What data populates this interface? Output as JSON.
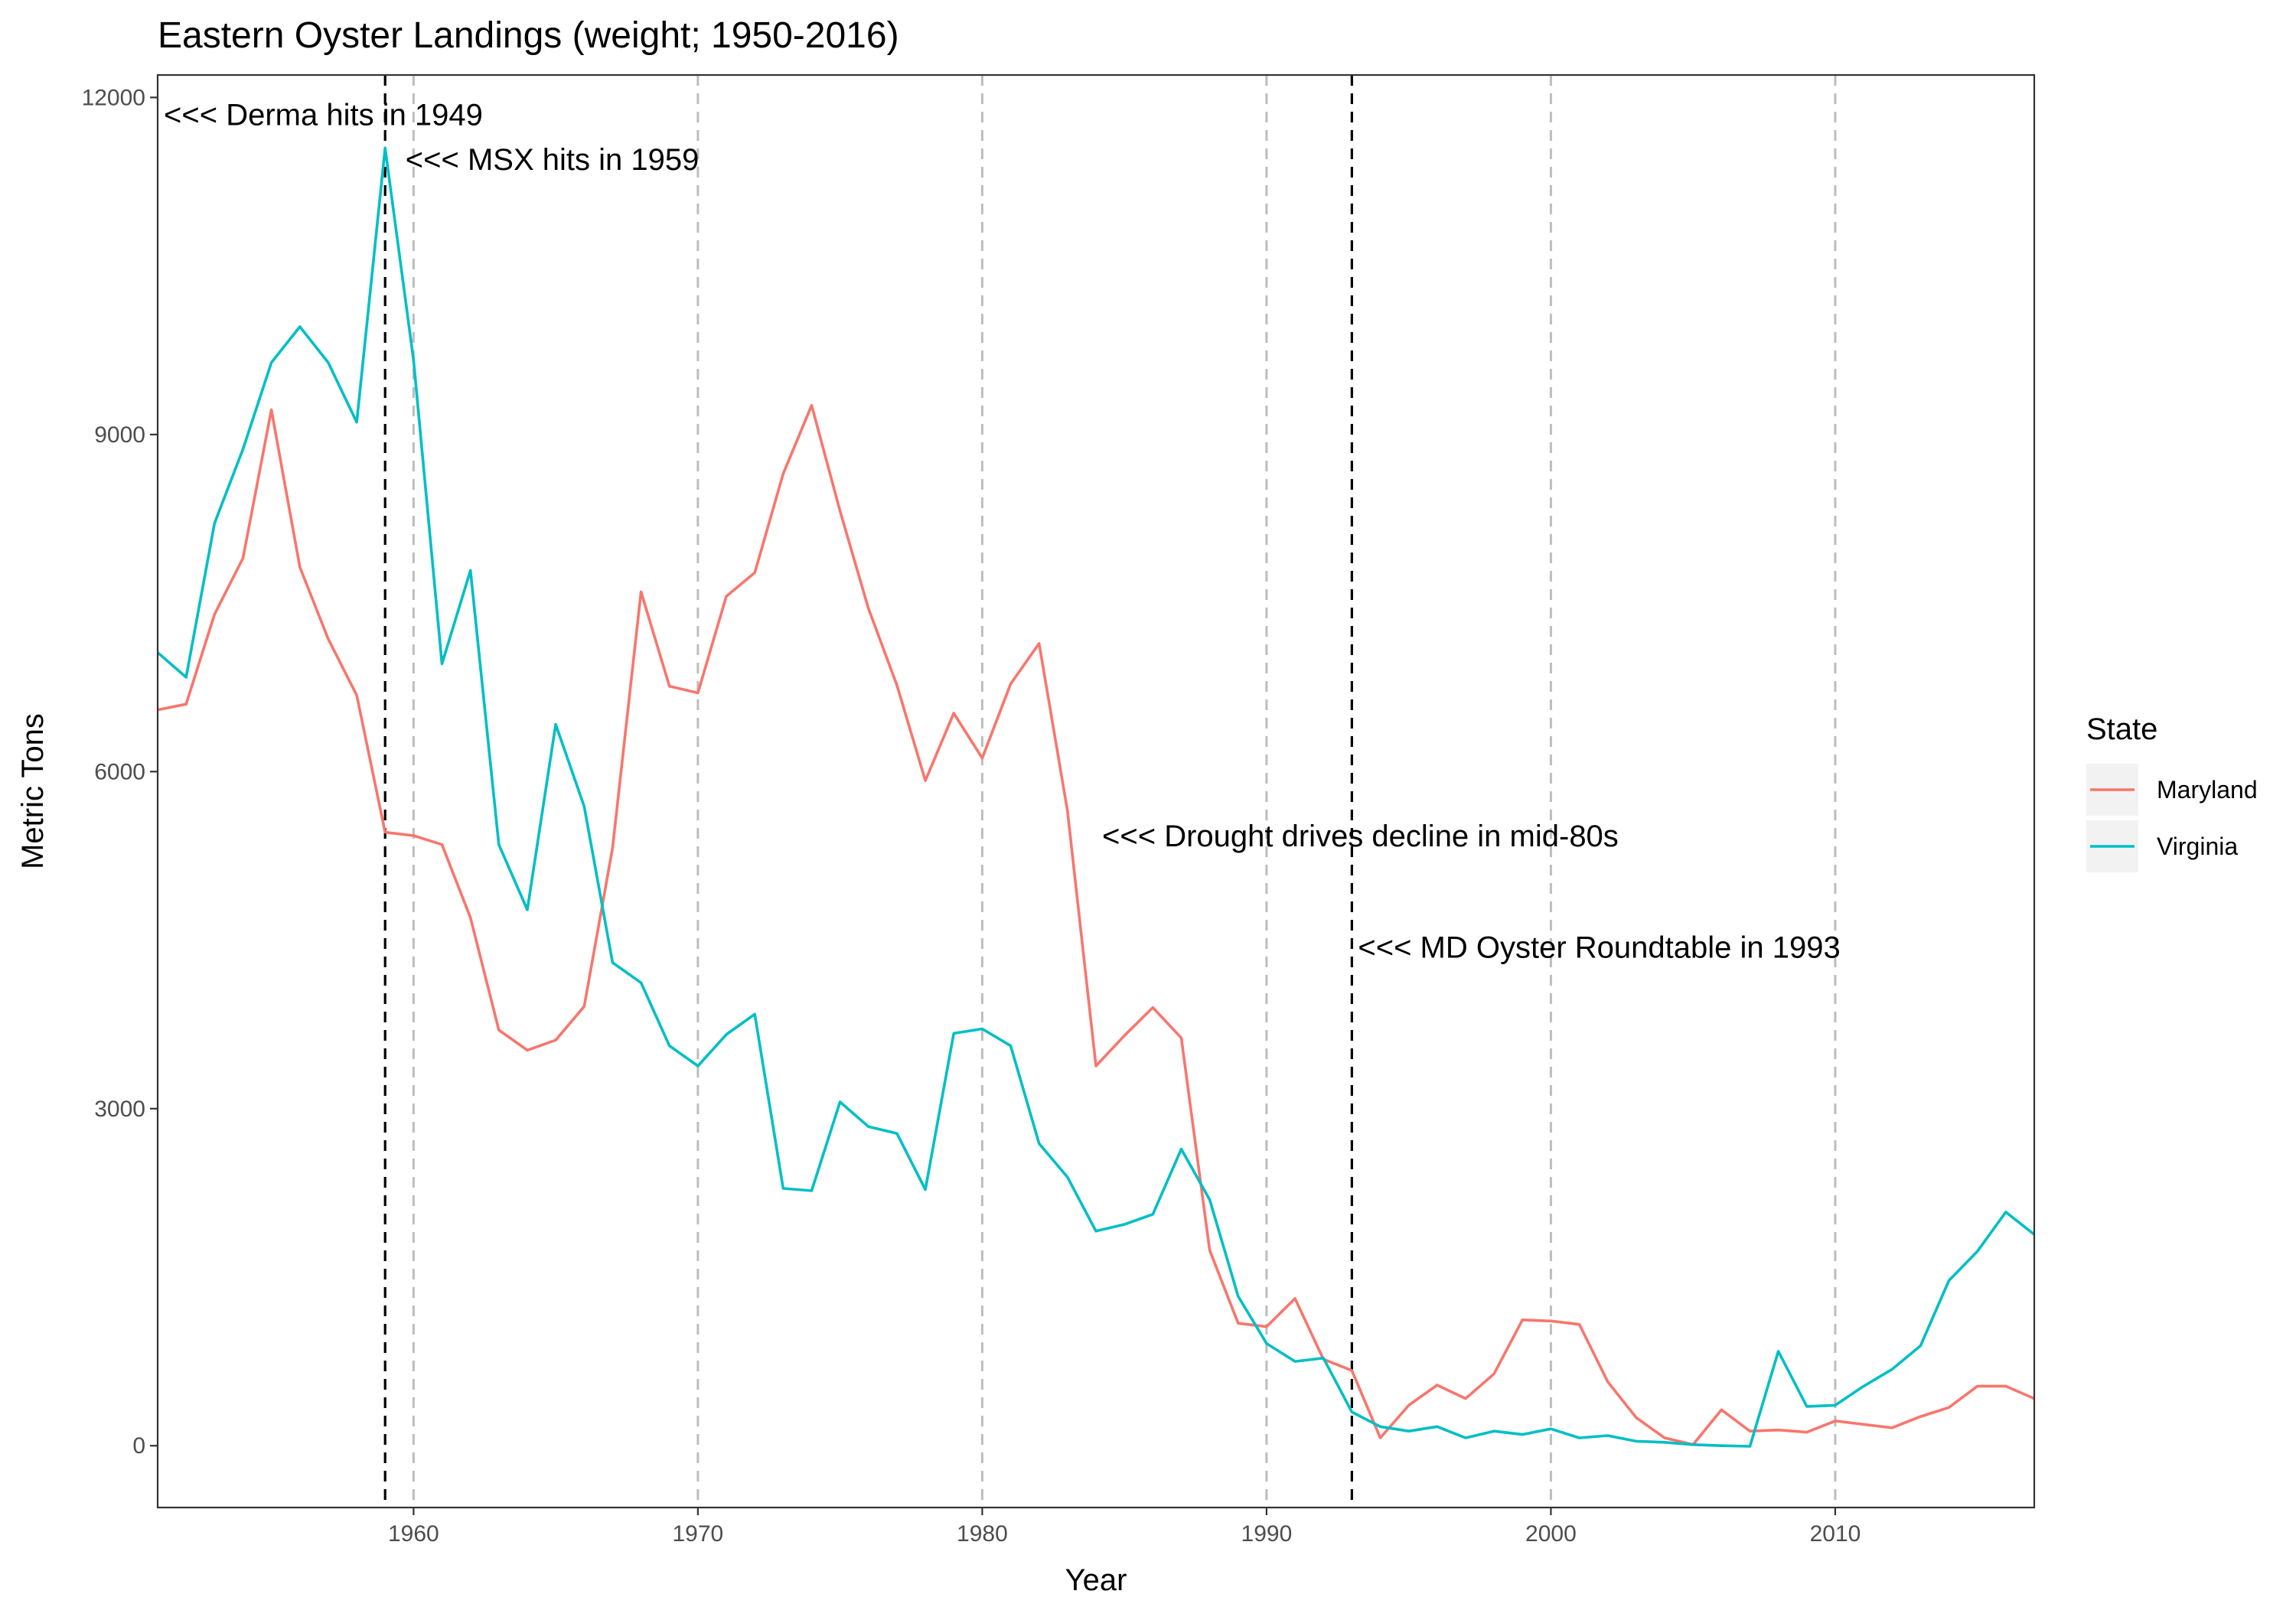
{
  "chart_data": {
    "type": "line",
    "title": "Eastern Oyster Landings (weight; 1950-2016)",
    "xlabel": "Year",
    "ylabel": "Metric Tons",
    "xlim": [
      1951,
      2017
    ],
    "ylim": [
      -550,
      12200
    ],
    "x_ticks": [
      1960,
      1970,
      1980,
      1990,
      2000,
      2010
    ],
    "y_ticks": [
      0,
      3000,
      6000,
      9000,
      12000
    ],
    "grid": false,
    "legend": {
      "title": "State",
      "position": "right"
    },
    "x": [
      1951,
      1952,
      1953,
      1954,
      1955,
      1956,
      1957,
      1958,
      1959,
      1960,
      1961,
      1962,
      1963,
      1964,
      1965,
      1966,
      1967,
      1968,
      1969,
      1970,
      1971,
      1972,
      1973,
      1974,
      1975,
      1976,
      1977,
      1978,
      1979,
      1980,
      1981,
      1982,
      1983,
      1984,
      1985,
      1986,
      1987,
      1988,
      1989,
      1990,
      1991,
      1992,
      1993,
      1994,
      1995,
      1996,
      1997,
      1998,
      1999,
      2000,
      2001,
      2002,
      2003,
      2004,
      2005,
      2006,
      2007,
      2008,
      2009,
      2010,
      2011,
      2012,
      2013,
      2014,
      2015,
      2016,
      2017
    ],
    "series": [
      {
        "name": "Maryland",
        "color": "#F8766D",
        "values": [
          6550,
          6600,
          7400,
          7900,
          9220,
          7820,
          7180,
          6680,
          5460,
          5430,
          5350,
          4700,
          3700,
          3520,
          3610,
          3910,
          5320,
          7600,
          6760,
          6700,
          7560,
          7770,
          8650,
          9260,
          8320,
          7450,
          6770,
          5920,
          6520,
          6120,
          6780,
          7140,
          5650,
          3380,
          3650,
          3900,
          3630,
          1740,
          1090,
          1060,
          1310,
          770,
          670,
          70,
          360,
          540,
          420,
          640,
          1120,
          1110,
          1080,
          570,
          250,
          70,
          10,
          320,
          130,
          140,
          120,
          220,
          190,
          160,
          260,
          340,
          530,
          530,
          420
        ]
      },
      {
        "name": "Virginia",
        "color": "#00BFC4",
        "values": [
          7060,
          6840,
          8210,
          8870,
          9640,
          9960,
          9640,
          9110,
          11550,
          9660,
          6960,
          7790,
          5350,
          4770,
          6420,
          5690,
          4300,
          4120,
          3560,
          3380,
          3660,
          3840,
          2290,
          2270,
          3060,
          2840,
          2780,
          2280,
          3670,
          3710,
          3560,
          2690,
          2390,
          1910,
          1970,
          2060,
          2640,
          2190,
          1330,
          910,
          750,
          780,
          300,
          170,
          130,
          170,
          70,
          130,
          100,
          150,
          70,
          90,
          40,
          30,
          10,
          0,
          -5,
          840,
          350,
          360,
          530,
          680,
          890,
          1470,
          1730,
          2080,
          1880
        ]
      }
    ],
    "reference_lines": [
      {
        "x": 1959,
        "style": "dashed",
        "color": "#000000"
      },
      {
        "x": 1993,
        "style": "dashed",
        "color": "#000000"
      },
      {
        "x": 1960,
        "style": "dashed",
        "color": "#bdbdbd"
      },
      {
        "x": 1970,
        "style": "dashed",
        "color": "#bdbdbd"
      },
      {
        "x": 1980,
        "style": "dashed",
        "color": "#bdbdbd"
      },
      {
        "x": 1990,
        "style": "dashed",
        "color": "#bdbdbd"
      },
      {
        "x": 2000,
        "style": "dashed",
        "color": "#bdbdbd"
      },
      {
        "x": 2010,
        "style": "dashed",
        "color": "#bdbdbd"
      }
    ],
    "annotations": [
      {
        "text": "<<< Derma hits in 1949",
        "x": 1951,
        "y": 11850
      },
      {
        "text": "<<< MSX hits in 1959",
        "x": 1959.5,
        "y": 11450
      },
      {
        "text": "<<< Drought drives decline in mid-80s",
        "x": 1984,
        "y": 5430
      },
      {
        "text": "<<< MD Oyster Roundtable in 1993",
        "x": 1993,
        "y": 4440
      }
    ]
  }
}
